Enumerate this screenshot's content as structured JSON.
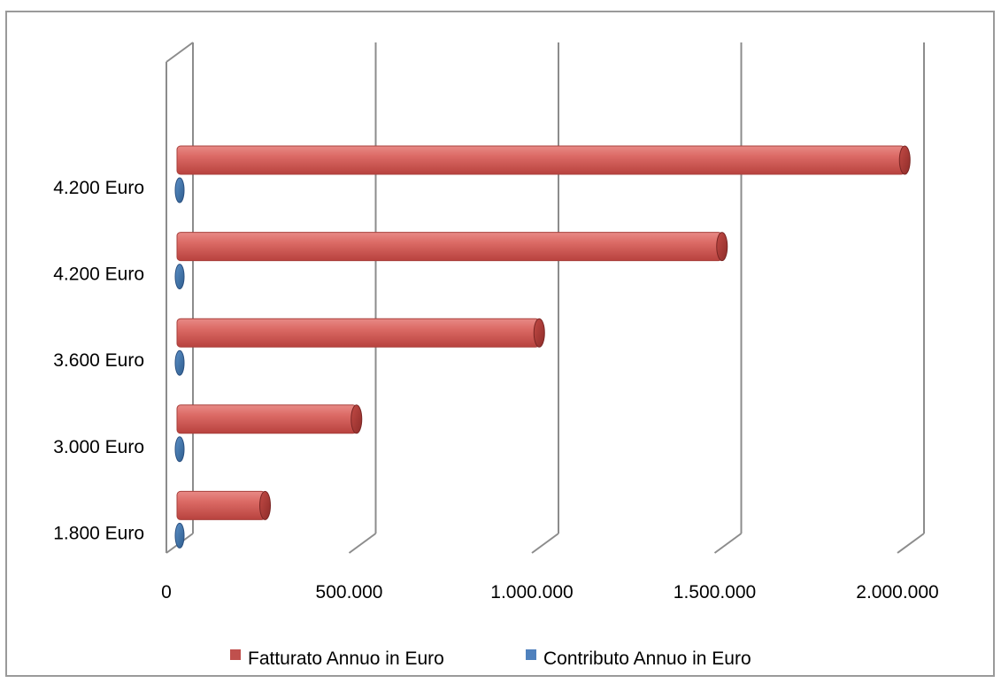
{
  "chart_data": {
    "type": "bar",
    "orientation": "horizontal",
    "style": "3d-cylinder",
    "categories": [
      "1.800 Euro",
      "3.000 Euro",
      "3.600 Euro",
      "4.200 Euro",
      "4.200 Euro"
    ],
    "series": [
      {
        "name": "Fatturato Annuo in Euro",
        "values": [
          270000,
          520000,
          1020000,
          1520000,
          2020000
        ],
        "color": "#c0504d"
      },
      {
        "name": "Contributo Annuo in Euro",
        "values": [
          1800,
          3000,
          3600,
          4200,
          4200
        ],
        "color": "#4f81bd"
      }
    ],
    "x_ticks": [
      "0",
      "500.000",
      "1.000.000",
      "1.500.000",
      "2.000.000"
    ],
    "xlim": [
      0,
      2000000
    ],
    "grid": true,
    "legend_position": "bottom"
  }
}
